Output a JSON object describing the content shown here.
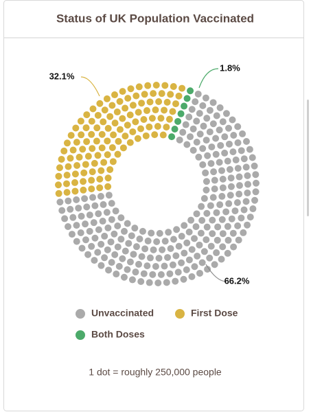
{
  "chart_data": {
    "type": "dot_donut",
    "title": "Status of UK Population Vaccinated",
    "categories": [
      "Unvaccinated",
      "First Dose",
      "Both Doses"
    ],
    "values": [
      66.2,
      32.1,
      1.8
    ],
    "value_labels": [
      "66.2%",
      "32.1%",
      "1.8%"
    ],
    "colors": [
      "#aaaaaa",
      "#d9b443",
      "#4caa6a"
    ],
    "note": "1 dot = roughly 250,000 people"
  }
}
